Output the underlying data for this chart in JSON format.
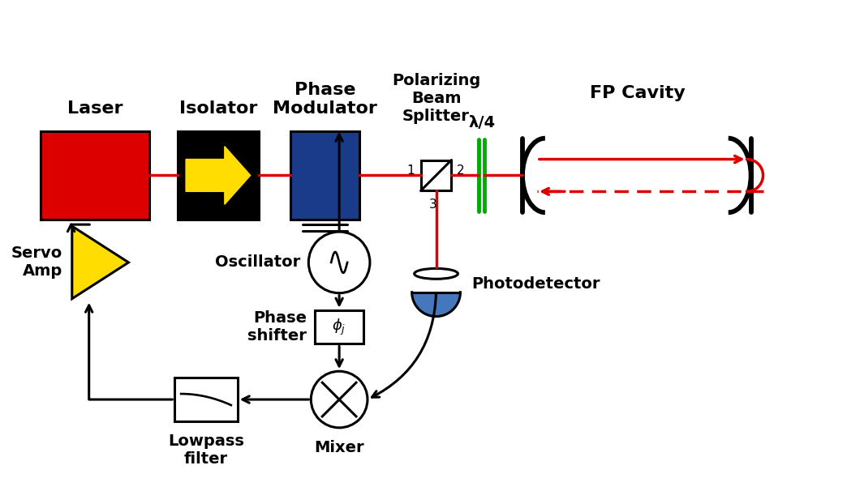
{
  "bg_color": "#ffffff",
  "laser_label": "Laser",
  "isolator_label": "Isolator",
  "phase_mod_label": "Phase\nModulator",
  "beam_splitter_label": "Polarizing\nBeam\nSplitter",
  "lambda4_label": "λ/4",
  "fp_cavity_label": "FP Cavity",
  "oscillator_label": "Oscillator",
  "phase_shifter_label": "Phase\nshifter",
  "mixer_label": "Mixer",
  "lowpass_label": "Lowpass\nfilter",
  "servo_label": "Servo\nAmp",
  "photodetector_label": "Photodetector",
  "red": "#dd0000",
  "black": "#000000",
  "green": "#00aa00",
  "blue_color": "#1a3a8a",
  "yellow": "#ffdd00",
  "pd_blue": "#4477bb"
}
